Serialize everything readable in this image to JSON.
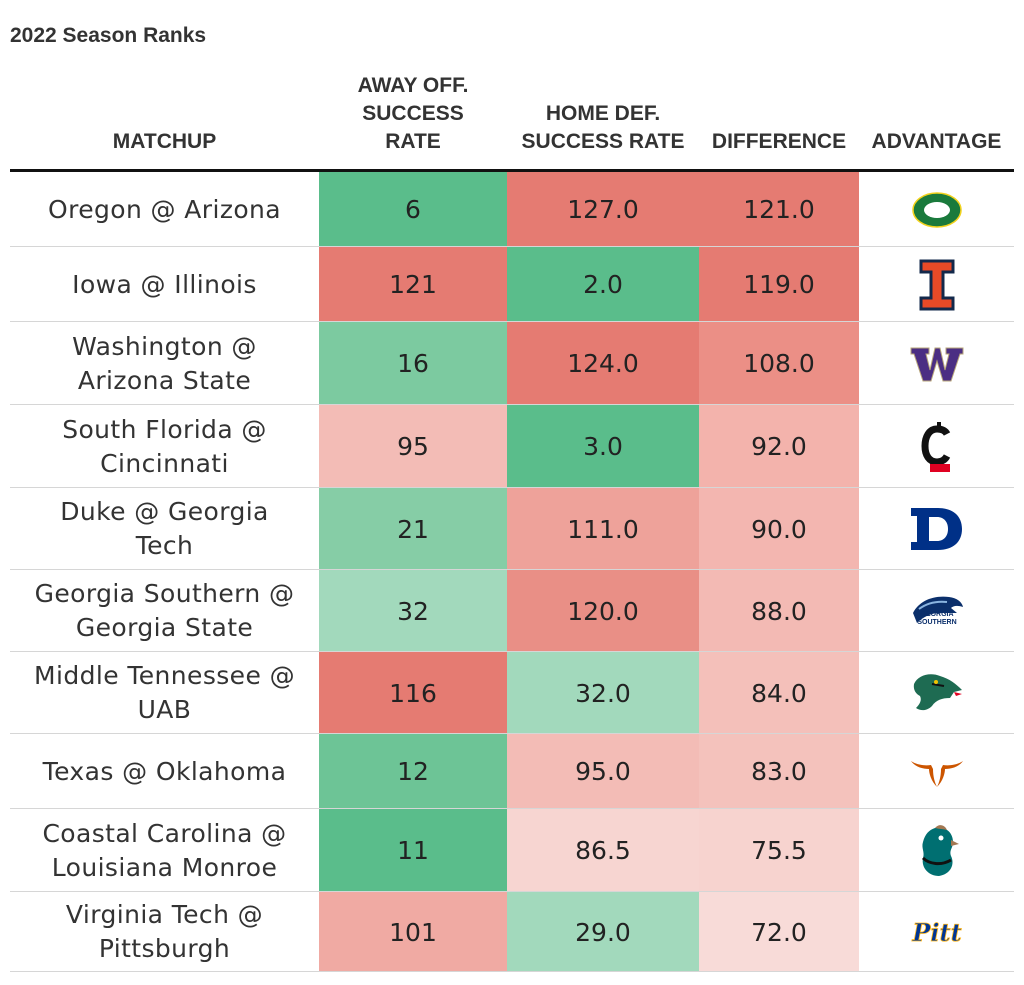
{
  "subtitle": "2022 Season Ranks",
  "columns": {
    "matchup": "MATCHUP",
    "away_off": "AWAY OFF.\nSUCCESS\nRATE",
    "home_def": "HOME DEF.\nSUCCESS RATE",
    "difference": "DIFFERENCE",
    "advantage": "ADVANTAGE"
  },
  "colors": {
    "green_strong": "#5abd8b",
    "green_mid": "#7ccaa0",
    "green_light": "#a2d9bc",
    "red_strong": "#e57b72",
    "red_mid": "#eea29a",
    "red_light": "#f3bcb6",
    "red_pale": "#f7d5d1"
  },
  "chart_data": {
    "type": "table",
    "title": "2022 Season Ranks",
    "columns": [
      "MATCHUP",
      "AWAY OFF. SUCCESS RATE",
      "HOME DEF. SUCCESS RATE",
      "DIFFERENCE",
      "ADVANTAGE"
    ],
    "rows": [
      {
        "matchup": "Oregon @ Arizona",
        "away_off": "6",
        "home_def": "127.0",
        "difference": "121.0",
        "advantage_icon": "oregon-o-logo",
        "away_fill": "#5abd8b",
        "home_fill": "#e57b72",
        "diff_fill": "#e57b72"
      },
      {
        "matchup": "Iowa @ Illinois",
        "away_off": "121",
        "home_def": "2.0",
        "difference": "119.0",
        "advantage_icon": "illinois-i-logo",
        "away_fill": "#e57b72",
        "home_fill": "#5abd8b",
        "diff_fill": "#e57b72"
      },
      {
        "matchup": "Washington @\nArizona State",
        "away_off": "16",
        "home_def": "124.0",
        "difference": "108.0",
        "advantage_icon": "washington-w-logo",
        "away_fill": "#7ccaa0",
        "home_fill": "#e57b72",
        "diff_fill": "#eb8f86"
      },
      {
        "matchup": "South Florida @\nCincinnati",
        "away_off": "95",
        "home_def": "3.0",
        "difference": "92.0",
        "advantage_icon": "cincinnati-c-logo",
        "away_fill": "#f3bcb6",
        "home_fill": "#5abd8b",
        "diff_fill": "#f3b3ac"
      },
      {
        "matchup": "Duke @ Georgia\nTech",
        "away_off": "21",
        "home_def": "111.0",
        "difference": "90.0",
        "advantage_icon": "duke-d-logo",
        "away_fill": "#86cda6",
        "home_fill": "#eea29a",
        "diff_fill": "#f3b6b0"
      },
      {
        "matchup": "Georgia Southern @\nGeorgia State",
        "away_off": "32",
        "home_def": "120.0",
        "difference": "88.0",
        "advantage_icon": "georgia-southern-eagle-logo",
        "away_fill": "#a2d9bc",
        "home_fill": "#e98f86",
        "diff_fill": "#f3bab4"
      },
      {
        "matchup": "Middle Tennessee @\nUAB",
        "away_off": "116",
        "home_def": "32.0",
        "difference": "84.0",
        "advantage_icon": "uab-dragon-logo",
        "away_fill": "#e57b72",
        "home_fill": "#a2d9bc",
        "diff_fill": "#f4c0ba"
      },
      {
        "matchup": "Texas @ Oklahoma",
        "away_off": "12",
        "home_def": "95.0",
        "difference": "83.0",
        "advantage_icon": "texas-longhorn-logo",
        "away_fill": "#6dc496",
        "home_fill": "#f3bcb6",
        "diff_fill": "#f4c2bc"
      },
      {
        "matchup": "Coastal Carolina @\nLouisiana Monroe",
        "away_off": "11",
        "home_def": "86.5",
        "difference": "75.5",
        "advantage_icon": "coastal-carolina-chanticleer-logo",
        "away_fill": "#5abd8b",
        "home_fill": "#f7d5d1",
        "diff_fill": "#f7d3cf"
      },
      {
        "matchup": "Virginia Tech @\nPittsburgh",
        "away_off": "101",
        "home_def": "29.0",
        "difference": "72.0",
        "advantage_icon": "pitt-script-logo",
        "away_fill": "#f0aaa3",
        "home_fill": "#a2d9bc",
        "diff_fill": "#f8dbd8"
      }
    ]
  }
}
